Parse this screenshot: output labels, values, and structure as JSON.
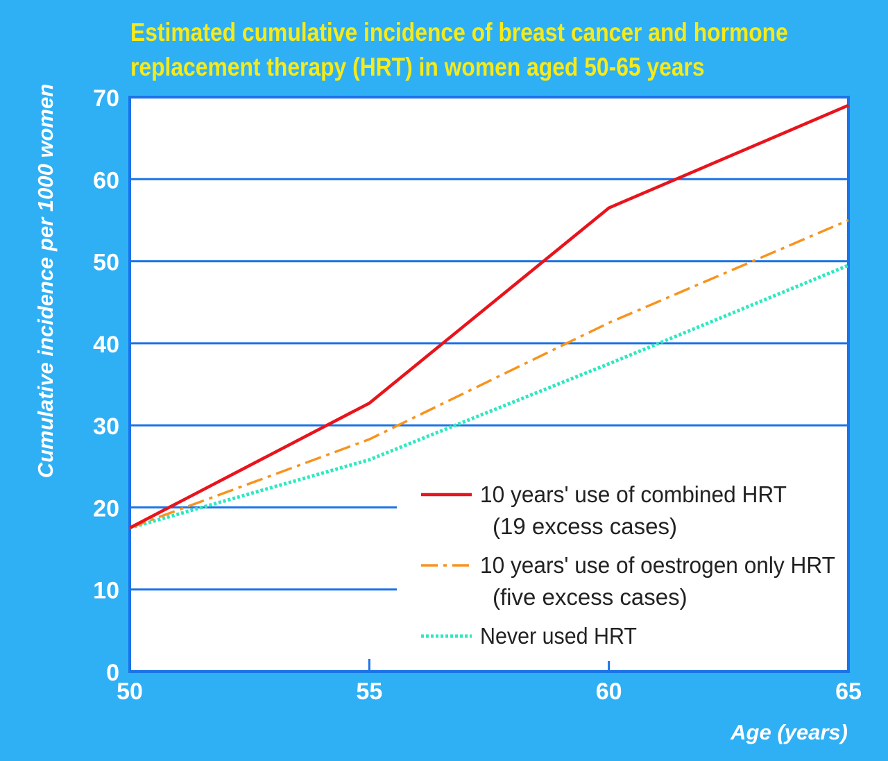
{
  "chart_data": {
    "type": "line",
    "title_line1": "Estimated cumulative incidence of breast cancer and hormone",
    "title_line2": "replacement therapy (HRT) in women aged 50-65 years",
    "xlabel": "Age (years)",
    "ylabel": "Cumulative incidence per 1000 women",
    "xlim": [
      50,
      65
    ],
    "ylim": [
      0,
      70
    ],
    "x_ticks": [
      50,
      55,
      60,
      65
    ],
    "y_ticks": [
      0,
      10,
      20,
      30,
      40,
      50,
      60,
      70
    ],
    "grid": "horizontal",
    "legend_position": "bottom-right",
    "series": [
      {
        "name": "10 years' use of combined HRT",
        "note": "(19 excess cases)",
        "color": "#e8141c",
        "style": "solid",
        "x": [
          50,
          55,
          60,
          65
        ],
        "y": [
          17.5,
          32.7,
          56.5,
          69
        ]
      },
      {
        "name": "10 years' use of oestrogen only HRT",
        "note": "(five excess cases)",
        "color": "#f7941d",
        "style": "dashdot",
        "x": [
          50,
          55,
          60,
          65
        ],
        "y": [
          17.5,
          28.3,
          42.5,
          55
        ]
      },
      {
        "name": "Never used HRT",
        "note": "",
        "color": "#2ee8c0",
        "style": "dotted",
        "x": [
          50,
          55,
          60,
          65
        ],
        "y": [
          17.5,
          25.8,
          37.5,
          49.5
        ]
      }
    ]
  }
}
